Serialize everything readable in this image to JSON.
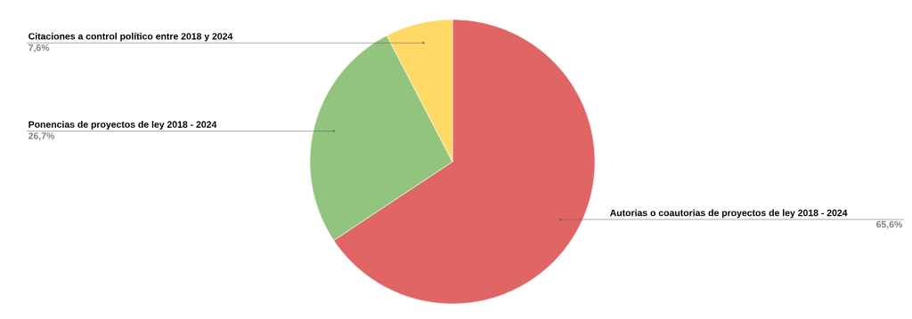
{
  "chart_data": {
    "type": "pie",
    "categories": [
      "Autorias o coautorias de proyectos de ley 2018 - 2024",
      "Ponencias de proyectos de ley 2018 - 2024",
      "Citaciones a control político entre 2018 y 2024"
    ],
    "values": [
      65.6,
      26.7,
      7.6
    ],
    "colors": [
      "#e06666",
      "#93c47d",
      "#ffd966"
    ],
    "value_labels": [
      "65,6%",
      "26,7%",
      "7,6%"
    ]
  }
}
